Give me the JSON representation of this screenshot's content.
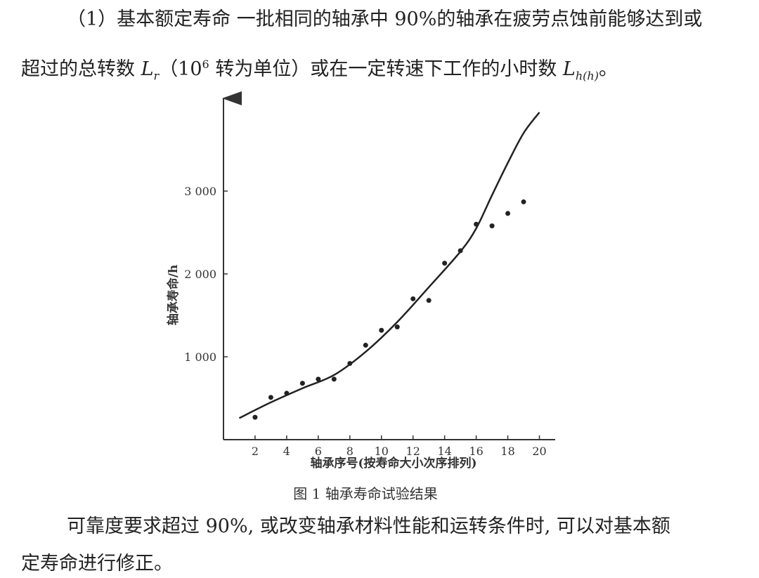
{
  "text": {
    "p1": "（1）基本额定寿命 一批相同的轴承中 90%的轴承在疲劳点蚀前能够达到或",
    "p2_pre": "超过的总转数 ",
    "p2_L": "L",
    "p2_Lsub": "r",
    "p2_mid1": "（10",
    "p2_sup": "6",
    "p2_mid2": " 转为单位）或在一定转速下工作的小时数 ",
    "p2_L2": "L",
    "p2_L2sub": "h(h)",
    "p2_end": "。",
    "p3": "可靠度要求超过 90%, 或改变轴承材料性能和运转条件时, 可以对基本额",
    "p4": "定寿命进行修正。"
  },
  "figure": {
    "caption": "图 1  轴承寿命试验结果"
  },
  "chart_data": {
    "type": "scatter",
    "xlabel": "轴承序号(按寿命大小次序排列)",
    "ylabel": "轴承寿命/h",
    "x_ticks": [
      2,
      4,
      6,
      8,
      10,
      12,
      14,
      16,
      18,
      20
    ],
    "y_ticks": [
      1000,
      2000,
      3000
    ],
    "y_tick_labels": [
      "1 000",
      "2 000",
      "3 000"
    ],
    "xlim": [
      0,
      21
    ],
    "ylim": [
      0,
      3950
    ],
    "points": [
      {
        "x": 2,
        "y": 270
      },
      {
        "x": 3,
        "y": 510
      },
      {
        "x": 4,
        "y": 560
      },
      {
        "x": 5,
        "y": 680
      },
      {
        "x": 6,
        "y": 730
      },
      {
        "x": 7,
        "y": 730
      },
      {
        "x": 8,
        "y": 920
      },
      {
        "x": 9,
        "y": 1140
      },
      {
        "x": 10,
        "y": 1320
      },
      {
        "x": 11,
        "y": 1360
      },
      {
        "x": 12,
        "y": 1700
      },
      {
        "x": 13,
        "y": 1680
      },
      {
        "x": 14,
        "y": 2130
      },
      {
        "x": 15,
        "y": 2280
      },
      {
        "x": 16,
        "y": 2600
      },
      {
        "x": 17,
        "y": 2580
      },
      {
        "x": 18,
        "y": 2730
      },
      {
        "x": 19,
        "y": 2870
      }
    ],
    "curve": [
      {
        "x": 1,
        "y": 260
      },
      {
        "x": 3,
        "y": 450
      },
      {
        "x": 5,
        "y": 620
      },
      {
        "x": 7,
        "y": 780
      },
      {
        "x": 9,
        "y": 1060
      },
      {
        "x": 11,
        "y": 1420
      },
      {
        "x": 13,
        "y": 1840
      },
      {
        "x": 15,
        "y": 2270
      },
      {
        "x": 16,
        "y": 2550
      },
      {
        "x": 17,
        "y": 2950
      },
      {
        "x": 18,
        "y": 3340
      },
      {
        "x": 19,
        "y": 3700
      },
      {
        "x": 20,
        "y": 3950
      }
    ]
  }
}
